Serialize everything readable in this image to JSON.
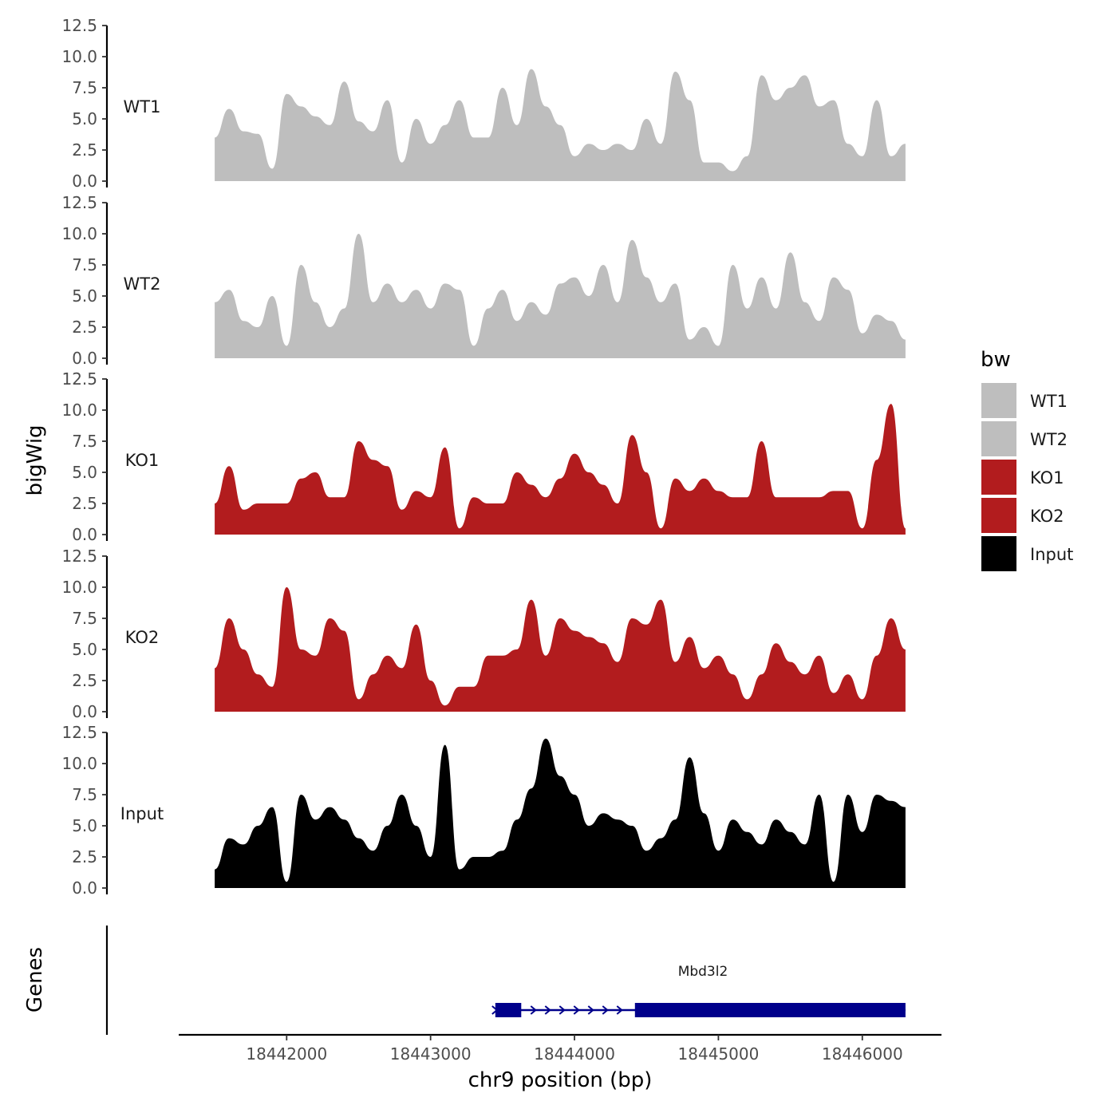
{
  "chart_data": {
    "type": "area",
    "xlabel": "chr9 position (bp)",
    "ylabel": "bigWig",
    "genes_label": "Genes",
    "xlim": [
      18441250,
      18446550
    ],
    "xticks": [
      18442000,
      18443000,
      18444000,
      18445000,
      18446000
    ],
    "xtick_labels": [
      "18442000",
      "18443000",
      "18444000",
      "18445000",
      "18446000"
    ],
    "ylim": [
      0,
      12.5
    ],
    "yticks": [
      0,
      2.5,
      5,
      7.5,
      10,
      12.5
    ],
    "ytick_labels": [
      "0.0",
      "2.5",
      "5.0",
      "7.5",
      "10.0",
      "12.5"
    ],
    "x": [
      18441500,
      18441600,
      18441700,
      18441800,
      18441900,
      18442000,
      18442100,
      18442200,
      18442300,
      18442400,
      18442500,
      18442600,
      18442700,
      18442800,
      18442900,
      18443000,
      18443100,
      18443200,
      18443300,
      18443400,
      18443500,
      18443600,
      18443700,
      18443800,
      18443900,
      18444000,
      18444100,
      18444200,
      18444300,
      18444400,
      18444500,
      18444600,
      18444700,
      18444800,
      18444900,
      18445000,
      18445100,
      18445200,
      18445300,
      18445400,
      18445500,
      18445600,
      18445700,
      18445800,
      18445900,
      18446000,
      18446100,
      18446200,
      18446300
    ],
    "series": [
      {
        "name": "WT1",
        "color": "#bebebe",
        "values": [
          3.5,
          5.8,
          4.0,
          3.8,
          1.0,
          7.0,
          6.0,
          5.2,
          4.5,
          8.0,
          4.8,
          4.0,
          6.5,
          1.5,
          5.0,
          3.0,
          4.5,
          6.5,
          3.5,
          3.5,
          7.5,
          4.5,
          9.0,
          6.0,
          4.5,
          2.0,
          3.0,
          2.5,
          3.0,
          2.5,
          5.0,
          3.0,
          8.8,
          6.5,
          1.5,
          1.5,
          0.8,
          2.0,
          8.5,
          6.5,
          7.5,
          8.5,
          6.0,
          6.5,
          3.0,
          2.0,
          6.5,
          2.0,
          3.0
        ]
      },
      {
        "name": "WT2",
        "color": "#bebebe",
        "values": [
          4.5,
          5.5,
          3.0,
          2.5,
          5.0,
          1.0,
          7.5,
          4.5,
          2.5,
          4.0,
          10.0,
          4.5,
          6.0,
          4.5,
          5.5,
          4.0,
          6.0,
          5.5,
          1.0,
          4.0,
          5.5,
          3.0,
          4.5,
          3.5,
          6.0,
          6.5,
          5.0,
          7.5,
          4.5,
          9.5,
          6.5,
          4.5,
          6.0,
          1.5,
          2.5,
          1.0,
          7.5,
          4.0,
          6.5,
          4.0,
          8.5,
          4.5,
          3.0,
          6.5,
          5.5,
          2.0,
          3.5,
          3.0,
          1.5
        ]
      },
      {
        "name": "KO1",
        "color": "#b21c1e",
        "values": [
          2.5,
          5.5,
          2.0,
          2.5,
          2.5,
          2.5,
          4.5,
          5.0,
          3.0,
          3.0,
          7.5,
          6.0,
          5.5,
          2.0,
          3.5,
          3.0,
          7.0,
          0.5,
          3.0,
          2.5,
          2.5,
          5.0,
          4.0,
          3.0,
          4.5,
          6.5,
          5.0,
          4.0,
          2.5,
          8.0,
          5.0,
          0.5,
          4.5,
          3.5,
          4.5,
          3.5,
          3.0,
          3.0,
          7.5,
          3.0,
          3.0,
          3.0,
          3.0,
          3.5,
          3.5,
          0.5,
          6.0,
          10.5,
          0.5
        ]
      },
      {
        "name": "KO2",
        "color": "#b21c1e",
        "values": [
          3.5,
          7.5,
          5.0,
          3.0,
          2.0,
          10.0,
          5.0,
          4.5,
          7.5,
          6.5,
          1.0,
          3.0,
          4.5,
          3.5,
          7.0,
          2.5,
          0.5,
          2.0,
          2.0,
          4.5,
          4.5,
          5.0,
          9.0,
          4.5,
          7.5,
          6.5,
          6.0,
          5.5,
          4.0,
          7.5,
          7.0,
          9.0,
          4.0,
          6.0,
          3.5,
          4.5,
          3.0,
          1.0,
          3.0,
          5.5,
          4.0,
          3.0,
          4.5,
          1.5,
          3.0,
          1.0,
          4.5,
          7.5,
          5.0
        ]
      },
      {
        "name": "Input",
        "color": "#000000",
        "values": [
          1.5,
          4.0,
          3.5,
          5.0,
          6.5,
          0.5,
          7.5,
          5.5,
          6.5,
          5.5,
          4.0,
          3.0,
          5.0,
          7.5,
          5.0,
          2.5,
          11.5,
          1.5,
          2.5,
          2.5,
          3.0,
          5.5,
          8.0,
          12.0,
          9.0,
          7.5,
          5.0,
          6.0,
          5.5,
          5.0,
          3.0,
          4.0,
          5.5,
          10.5,
          6.0,
          3.0,
          5.5,
          4.5,
          3.5,
          5.5,
          4.5,
          3.5,
          7.5,
          0.5,
          7.5,
          4.5,
          7.5,
          7.0,
          6.5
        ]
      }
    ],
    "legend": {
      "title": "bw",
      "position": "right",
      "entries": [
        {
          "label": "WT1",
          "color": "#bebebe"
        },
        {
          "label": "WT2",
          "color": "#bebebe"
        },
        {
          "label": "KO1",
          "color": "#b21c1e"
        },
        {
          "label": "KO2",
          "color": "#b21c1e"
        },
        {
          "label": "Input",
          "color": "#000000"
        }
      ]
    },
    "gene": {
      "name": "Mbd3l2",
      "color": "#00008b",
      "strand": "+",
      "start": 18443450,
      "end": 18446300,
      "exons": [
        [
          18443450,
          18443630
        ],
        [
          18444420,
          18446300
        ]
      ]
    }
  }
}
